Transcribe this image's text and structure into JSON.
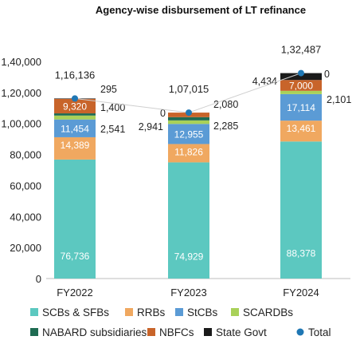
{
  "chart_data": {
    "type": "bar",
    "stacked": true,
    "title": "Agency-wise disbursement of LT refinance",
    "categories": [
      "FY2022",
      "FY2023",
      "FY2024"
    ],
    "ylim": [
      0,
      140000
    ],
    "yticks": [
      0,
      20000,
      40000,
      60000,
      80000,
      100000,
      120000,
      140000
    ],
    "ytick_labels": [
      "0",
      "20,000",
      "40,000",
      "60,000",
      "80,000",
      "1,00,000",
      "1,20,000",
      "1,40,000"
    ],
    "grid": false,
    "legend_position": "bottom",
    "series": [
      {
        "name": "SCBs & SFBs",
        "color": "#5cc8c0",
        "values": [
          76736,
          74929,
          88378
        ],
        "labels": [
          "76,736",
          "74,929",
          "88,378"
        ]
      },
      {
        "name": "RRBs",
        "color": "#f0a860",
        "values": [
          14389,
          11826,
          13461
        ],
        "labels": [
          "14,389",
          "11,826",
          "13,461"
        ]
      },
      {
        "name": "StCBs",
        "color": "#5b9bd5",
        "values": [
          11454,
          12955,
          17114
        ],
        "labels": [
          "11,454",
          "12,955",
          "17,114"
        ]
      },
      {
        "name": "SCARDBs",
        "color": "#a9d159",
        "values": [
          2541,
          2285,
          2101
        ],
        "labels": [
          "2,541",
          "2,285",
          "2,101"
        ]
      },
      {
        "name": "NABARD subsidiaries",
        "color": "#1e6b52",
        "values": [
          1400,
          2080,
          0
        ],
        "labels": [
          "1,400",
          "2,080",
          "0"
        ]
      },
      {
        "name": "NBFCs",
        "color": "#c8642a",
        "values": [
          9320,
          2941,
          7000
        ],
        "labels": [
          "9,320",
          "2,941",
          "7,000"
        ]
      },
      {
        "name": "State Govt",
        "color": "#1a1a1a",
        "values": [
          295,
          0,
          4434
        ],
        "labels": [
          "295",
          "0",
          "4,434"
        ]
      }
    ],
    "total": {
      "name": "Total",
      "color": "#1f77b4",
      "values": [
        116136,
        107015,
        132487
      ],
      "labels": [
        "1,16,136",
        "1,07,015",
        "1,32,487"
      ]
    }
  }
}
